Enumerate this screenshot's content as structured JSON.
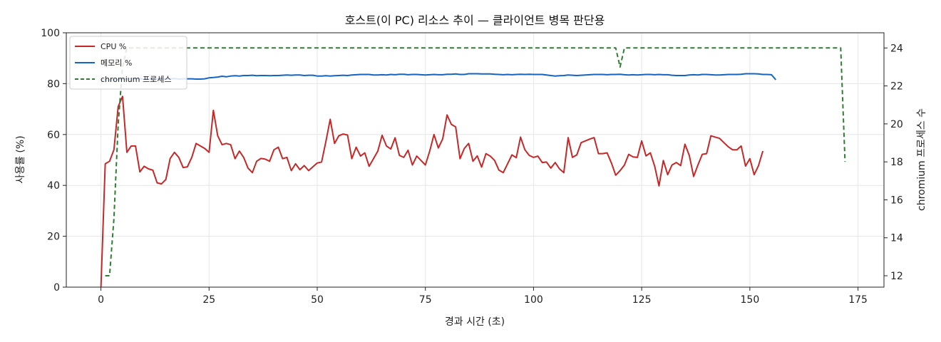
{
  "chart_data": {
    "type": "line",
    "title": "호스트(이 PC) 리소스 추이 — 클라이언트 병목 판단용",
    "xlabel": "경과 시간 (초)",
    "ylabel": "사용률 (%)",
    "y2label": "chromium 프로세스 수",
    "xlim": [
      -8,
      181
    ],
    "ylim": [
      0,
      100
    ],
    "y2lim": [
      11.4,
      24.8
    ],
    "xticks": [
      0,
      25,
      50,
      75,
      100,
      125,
      150,
      175
    ],
    "yticks": [
      0,
      20,
      40,
      60,
      80,
      100
    ],
    "y2ticks": [
      12,
      14,
      16,
      18,
      20,
      22,
      24
    ],
    "grid": true,
    "legend_position": "top-left",
    "series": [
      {
        "name": "CPU %",
        "axis": "left",
        "color": "#c62828",
        "style": "solid",
        "x_start": 0,
        "x_step": 1,
        "values": [
          0,
          48.5,
          49.5,
          54,
          71,
          75,
          53,
          55.5,
          55.5,
          45.3,
          47.5,
          46.5,
          46,
          41,
          40.6,
          42.3,
          50.6,
          53,
          51,
          47,
          47.3,
          51,
          56.5,
          55.5,
          54.5,
          53,
          69.5,
          59.5,
          56,
          56.5,
          56,
          50.5,
          53.5,
          51,
          46.8,
          45,
          49.5,
          50.6,
          50.3,
          49.5,
          54,
          55,
          50.5,
          51,
          45.8,
          48.5,
          46.2,
          47.8,
          45.8,
          47.3,
          48.8,
          49.2,
          57.2,
          66,
          56.5,
          59.5,
          60.2,
          59.8,
          50.5,
          55,
          51.5,
          52.8,
          47.5,
          50.5,
          53.5,
          59.7,
          55.5,
          54.3,
          58.7,
          51.8,
          51,
          53.8,
          48,
          51.5,
          49.8,
          48,
          53.5,
          60,
          54.7,
          58.3,
          67.7,
          64,
          63,
          50.5,
          54.5,
          56.5,
          49.5,
          51.6,
          47.2,
          52.5,
          51.5,
          49.8,
          46,
          45,
          48.5,
          52,
          50.9,
          59,
          54,
          51.8,
          51,
          51.5,
          49,
          49.2,
          46.8,
          49,
          46.5,
          45,
          58.8,
          51,
          52,
          56.8,
          57.5,
          58.2,
          58.8,
          52.5,
          52.5,
          52.8,
          48.8,
          44,
          45.8,
          48,
          52.2,
          51.2,
          51,
          57.5,
          51.6,
          52.8,
          47.5,
          39.8,
          49.8,
          44.2,
          48,
          49,
          47.8,
          56.2,
          51.8,
          43.5,
          48,
          52.2,
          52.5,
          59.5,
          59,
          58.5,
          56.8,
          55.2,
          54,
          54,
          55.5,
          47.6,
          50.5,
          44.2,
          47.8,
          53.5
        ]
      },
      {
        "name": "메모리 %",
        "axis": "left",
        "color": "#1565c0",
        "style": "solid",
        "x_start": 0,
        "x_step": 1,
        "values": [
          81.5,
          81.5,
          81.5,
          81.6,
          81.7,
          81.8,
          81.8,
          81.9,
          81.9,
          81.9,
          81.8,
          81.8,
          81.9,
          81.9,
          81.8,
          81.8,
          81.9,
          82,
          81.8,
          81.9,
          81.9,
          81.9,
          81.8,
          81.8,
          81.9,
          82.3,
          82.4,
          82.6,
          82.9,
          82.7,
          83,
          83.1,
          83,
          83.2,
          83.2,
          83.3,
          83.1,
          83.2,
          83.2,
          83.1,
          83.2,
          83.2,
          83.3,
          83.4,
          83.3,
          83.4,
          83.4,
          83.2,
          83.3,
          83.3,
          83,
          83,
          83.1,
          83,
          83.1,
          83.2,
          83.3,
          83.2,
          83.4,
          83.5,
          83.6,
          83.6,
          83.6,
          83.4,
          83.4,
          83.5,
          83.4,
          83.6,
          83.5,
          83.7,
          83.7,
          83.5,
          83.6,
          83.6,
          83.5,
          83.4,
          83.5,
          83.6,
          83.5,
          83.5,
          83.7,
          83.7,
          83.8,
          83.6,
          83.6,
          83.9,
          83.9,
          83.9,
          83.8,
          83.8,
          83.8,
          83.7,
          83.6,
          83.5,
          83.6,
          83.5,
          83.6,
          83.7,
          83.6,
          83.7,
          83.6,
          83.6,
          83.6,
          83.4,
          83.2,
          83,
          83.1,
          83.2,
          83.4,
          83.3,
          83.2,
          83.3,
          83.4,
          83.5,
          83.6,
          83.6,
          83.6,
          83.5,
          83.6,
          83.6,
          83.7,
          83.5,
          83.4,
          83.5,
          83.4,
          83.5,
          83.6,
          83.6,
          83.5,
          83.6,
          83.5,
          83.5,
          83.3,
          83.2,
          83.2,
          83.2,
          83.4,
          83.5,
          83.4,
          83.6,
          83.6,
          83.5,
          83.4,
          83.4,
          83.5,
          83.6,
          83.6,
          83.6,
          83.7,
          83.9,
          83.9,
          83.9,
          83.8,
          83.6,
          83.6,
          83.5,
          81.5
        ]
      },
      {
        "name": "chromium 프로세스",
        "axis": "right",
        "color": "#2e7d32",
        "style": "dashed",
        "points": [
          [
            1,
            12
          ],
          [
            2,
            12
          ],
          [
            3,
            15
          ],
          [
            4,
            20
          ],
          [
            5,
            23
          ],
          [
            6,
            24
          ],
          [
            119,
            24
          ],
          [
            120,
            23
          ],
          [
            121,
            24
          ],
          [
            171,
            24
          ],
          [
            172,
            18
          ]
        ]
      }
    ]
  }
}
